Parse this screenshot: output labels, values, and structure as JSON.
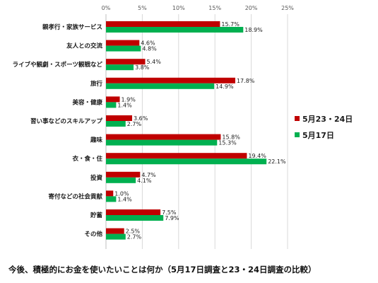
{
  "chart_data": {
    "type": "bar",
    "orientation": "horizontal",
    "title": "今後、積極的にお金を使いたいことは何か（5月17日調査と23・24日調査の比較）",
    "categories": [
      "親孝行・家族サービス",
      "友人との交流",
      "ライブや観劇・スポーツ観戦など",
      "旅行",
      "美容・健康",
      "習い事などのスキルアップ",
      "趣味",
      "衣・食・住",
      "投資",
      "寄付などの社会貢献",
      "貯蓄",
      "その他"
    ],
    "series": [
      {
        "name": "5月23・24日",
        "color": "#c00000",
        "values": [
          15.7,
          4.6,
          5.4,
          17.8,
          1.9,
          3.6,
          15.8,
          19.4,
          4.7,
          1.0,
          7.5,
          2.5
        ],
        "labels": [
          "15.7%",
          "4.6%",
          "5.4%",
          "17.8%",
          "1.9%",
          "3.6%",
          "15.8%",
          "19.4%",
          "4.7%",
          "1.0%",
          "7.5%",
          "2.5%"
        ]
      },
      {
        "name": "5月17日",
        "color": "#00b050",
        "values": [
          18.9,
          4.8,
          3.8,
          14.9,
          1.4,
          2.7,
          15.3,
          22.1,
          4.1,
          1.4,
          7.9,
          2.7
        ],
        "labels": [
          "18.9%",
          "4.8%",
          "3.8%",
          "14.9%",
          "1.4%",
          "2.7%",
          "15.3%",
          "22.1%",
          "4.1%",
          "1.4%",
          "7.9%",
          "2.7%"
        ]
      }
    ],
    "xlim": [
      0,
      25
    ],
    "xticks": [
      0,
      5,
      10,
      15,
      20,
      25
    ],
    "xtick_labels": [
      "0%",
      "5%",
      "10%",
      "15%",
      "20%",
      "25%"
    ],
    "x_axis_position": "top",
    "grid": true,
    "legend_position": "right"
  }
}
